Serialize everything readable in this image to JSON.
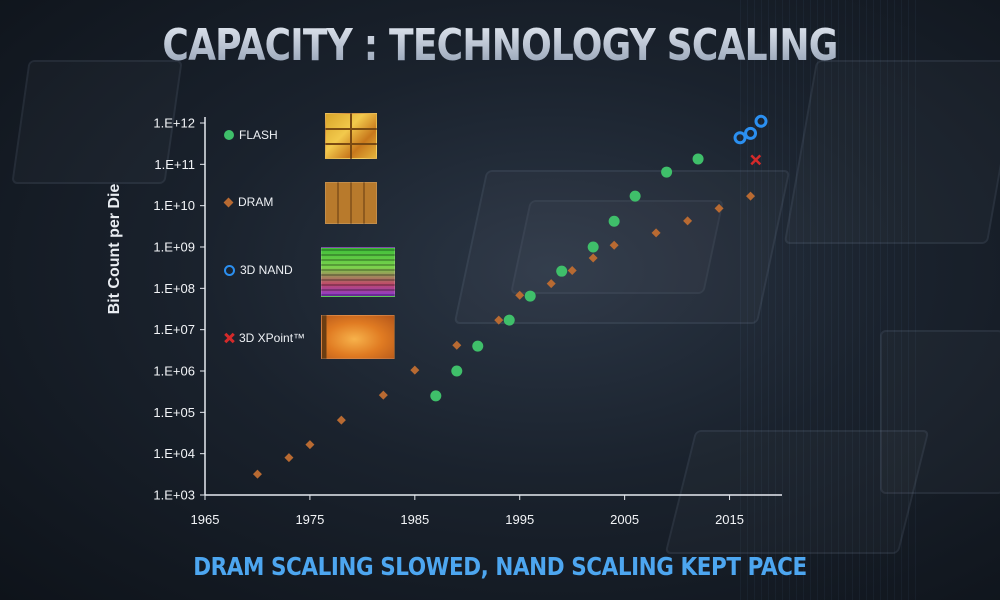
{
  "title": "CAPACITY : TECHNOLOGY SCALING",
  "subtitle": "DRAM SCALING SLOWED, NAND SCALING KEPT PACE",
  "colors": {
    "flash": "#3fbf6a",
    "dram": "#b86a32",
    "nand": "#2b8ff0",
    "xpoint": "#d42a2a",
    "subtitle": "#4da6f0"
  },
  "chart_data": {
    "type": "scatter",
    "ylabel": "Bit  Count per Die",
    "xlabel": "",
    "xlim": [
      1965,
      2020
    ],
    "x_ticks": [
      1965,
      1975,
      1985,
      1995,
      2005,
      2015
    ],
    "y_scale": "log",
    "ylim_exponent": [
      3,
      12
    ],
    "y_tick_labels": [
      "1.E+03",
      "1.E+04",
      "1.E+05",
      "1.E+06",
      "1.E+07",
      "1.E+08",
      "1.E+09",
      "1.E+10",
      "1.E+11",
      "1.E+12"
    ],
    "grid": false,
    "legend_position": "top-left",
    "series": [
      {
        "name": "FLASH",
        "marker": "circle",
        "points": [
          [
            1987,
            250000.0
          ],
          [
            1989,
            1000000.0
          ],
          [
            1991,
            4000000.0
          ],
          [
            1994,
            17000000.0
          ],
          [
            1996,
            65000000.0
          ],
          [
            1999,
            260000000.0
          ],
          [
            2002,
            1000000000.0
          ],
          [
            2004,
            4200000000.0
          ],
          [
            2006,
            17000000000.0
          ],
          [
            2009,
            65000000000.0
          ],
          [
            2012,
            135000000000.0
          ]
        ]
      },
      {
        "name": "DRAM",
        "marker": "diamond",
        "points": [
          [
            1970,
            3200.0
          ],
          [
            1973,
            8000.0
          ],
          [
            1975,
            16500.0
          ],
          [
            1978,
            65000.0
          ],
          [
            1982,
            260000.0
          ],
          [
            1985,
            1050000.0
          ],
          [
            1989,
            4200000.0
          ],
          [
            1993,
            17000000.0
          ],
          [
            1995,
            68000000.0
          ],
          [
            1998,
            130000000.0
          ],
          [
            2000,
            270000000.0
          ],
          [
            2002,
            540000000.0
          ],
          [
            2004,
            1100000000.0
          ],
          [
            2008,
            2200000000.0
          ],
          [
            2011,
            4300000000.0
          ],
          [
            2014,
            8600000000.0
          ],
          [
            2017,
            17000000000.0
          ]
        ]
      },
      {
        "name": "3D NAND",
        "marker": "ring",
        "points": [
          [
            2016,
            440000000000.0
          ],
          [
            2017,
            560000000000.0
          ],
          [
            2018,
            1100000000000.0
          ]
        ]
      },
      {
        "name": "3D XPoint™",
        "marker": "x",
        "points": [
          [
            2017.5,
            128000000000.0
          ]
        ]
      }
    ]
  }
}
